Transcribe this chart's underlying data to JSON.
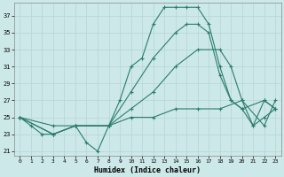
{
  "xlabel": "Humidex (Indice chaleur)",
  "bg_color": "#cde8e8",
  "line_color": "#2a7d6e",
  "grid_color": "#b8d8d8",
  "xlim": [
    -0.5,
    23.5
  ],
  "ylim": [
    20.5,
    38.5
  ],
  "xticks": [
    0,
    1,
    2,
    3,
    4,
    5,
    6,
    7,
    8,
    9,
    10,
    11,
    12,
    13,
    14,
    15,
    16,
    17,
    18,
    19,
    20,
    21,
    22,
    23
  ],
  "yticks": [
    21,
    23,
    25,
    27,
    29,
    31,
    33,
    35,
    37
  ],
  "lines": [
    {
      "x": [
        0,
        1,
        2,
        3,
        5,
        6,
        7,
        8,
        9,
        10,
        11,
        12,
        13,
        14,
        15,
        16,
        17,
        18,
        19,
        20,
        21,
        22,
        23
      ],
      "y": [
        25,
        24,
        23,
        23,
        24,
        22,
        21,
        24,
        27,
        31,
        32,
        36,
        38,
        38,
        38,
        38,
        36,
        31,
        27,
        26,
        24,
        25,
        26
      ]
    },
    {
      "x": [
        0,
        3,
        5,
        8,
        10,
        12,
        14,
        15,
        16,
        17,
        18,
        19,
        20,
        22,
        23
      ],
      "y": [
        25,
        23,
        24,
        24,
        28,
        32,
        35,
        36,
        36,
        35,
        30,
        27,
        26,
        27,
        26
      ]
    },
    {
      "x": [
        0,
        3,
        5,
        8,
        10,
        12,
        14,
        16,
        18,
        19,
        20,
        21,
        22,
        23
      ],
      "y": [
        25,
        23,
        24,
        24,
        26,
        28,
        31,
        33,
        33,
        31,
        27,
        24,
        27,
        26
      ]
    },
    {
      "x": [
        0,
        3,
        5,
        8,
        10,
        12,
        14,
        16,
        18,
        20,
        22,
        23
      ],
      "y": [
        25,
        24,
        24,
        24,
        25,
        25,
        26,
        26,
        26,
        27,
        24,
        27
      ]
    }
  ]
}
